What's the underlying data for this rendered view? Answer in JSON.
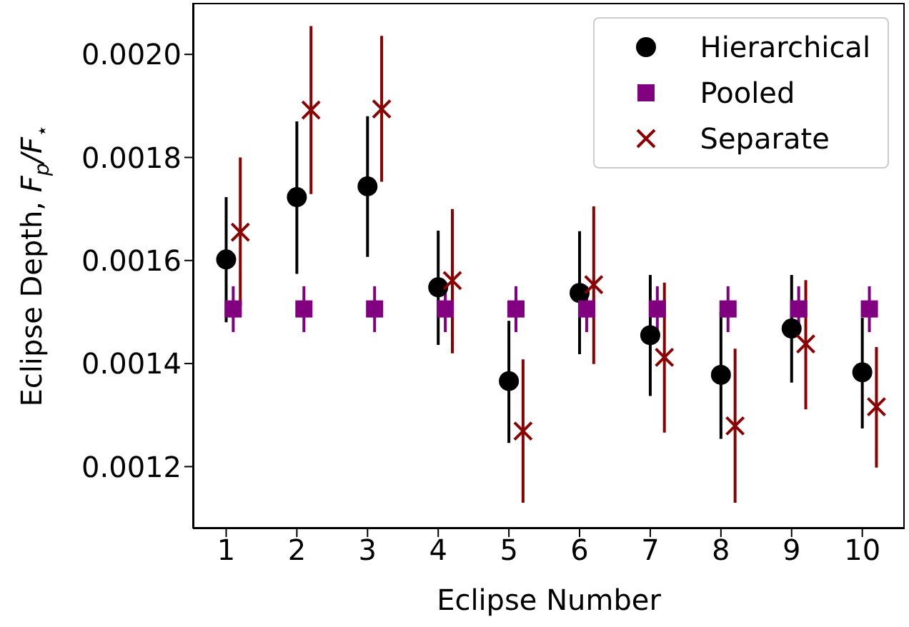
{
  "chart_data": {
    "type": "scatter",
    "xlabel": "Eclipse Number",
    "ylabel": "Eclipse Depth, F$_{p}$/F$_{⋆}$",
    "xlim": [
      0.53,
      10.6
    ],
    "xticks": [
      1,
      2,
      3,
      4,
      5,
      6,
      7,
      8,
      9,
      10
    ],
    "ylim": [
      0.00108,
      0.0021
    ],
    "yticks": [
      0.0012,
      0.0014,
      0.0016,
      0.0018,
      {
        "value": 0.002,
        "label": "0.0020"
      }
    ],
    "legend": "top right",
    "series": [
      {
        "name": "Hierarchical",
        "color": "#000000",
        "marker": "circle",
        "x": [
          1,
          2,
          3,
          4,
          5,
          6,
          7,
          8,
          9,
          10
        ],
        "values": [
          0.001602,
          0.001723,
          0.001744,
          0.001548,
          0.001366,
          0.001537,
          0.001455,
          0.001378,
          0.001468,
          0.001383
        ],
        "errors": [
          [
            0.00148,
            0.001723
          ],
          [
            0.001574,
            0.00187
          ],
          [
            0.001607,
            0.00188
          ],
          [
            0.001436,
            0.001658
          ],
          [
            0.001246,
            0.001483
          ],
          [
            0.001418,
            0.001657
          ],
          [
            0.001337,
            0.001572
          ],
          [
            0.001254,
            0.0015
          ],
          [
            0.001363,
            0.001572
          ],
          [
            0.001274,
            0.001489
          ]
        ]
      },
      {
        "name": "Pooled",
        "color": "#800080",
        "marker": "square",
        "x": [
          1.1,
          2.1,
          3.1,
          4.1,
          5.1,
          6.1,
          7.1,
          8.1,
          9.1,
          10.1
        ],
        "values": [
          0.001506,
          0.001506,
          0.001506,
          0.001506,
          0.001506,
          0.001506,
          0.001506,
          0.001506,
          0.001506,
          0.001506
        ],
        "errors": [
          [
            0.001461,
            0.00155
          ],
          [
            0.001461,
            0.00155
          ],
          [
            0.001461,
            0.00155
          ],
          [
            0.001461,
            0.00155
          ],
          [
            0.001461,
            0.00155
          ],
          [
            0.001461,
            0.00155
          ],
          [
            0.001461,
            0.00155
          ],
          [
            0.001461,
            0.00155
          ],
          [
            0.001461,
            0.00155
          ],
          [
            0.001461,
            0.00155
          ]
        ]
      },
      {
        "name": "Separate",
        "color": "#8b0000",
        "marker": "cross",
        "x": [
          1.2,
          2.2,
          3.2,
          4.2,
          5.2,
          6.2,
          7.2,
          8.2,
          9.2,
          10.2
        ],
        "values": [
          0.001655,
          0.001892,
          0.001894,
          0.001561,
          0.001269,
          0.001553,
          0.001412,
          0.001279,
          0.001438,
          0.001316
        ],
        "errors": [
          [
            0.001512,
            0.0018
          ],
          [
            0.001729,
            0.002055
          ],
          [
            0.001753,
            0.002036
          ],
          [
            0.00142,
            0.0017
          ],
          [
            0.00113,
            0.001408
          ],
          [
            0.001399,
            0.001705
          ],
          [
            0.001266,
            0.001557
          ],
          [
            0.00113,
            0.001429
          ],
          [
            0.001311,
            0.001562
          ],
          [
            0.001198,
            0.001432
          ]
        ]
      }
    ]
  }
}
